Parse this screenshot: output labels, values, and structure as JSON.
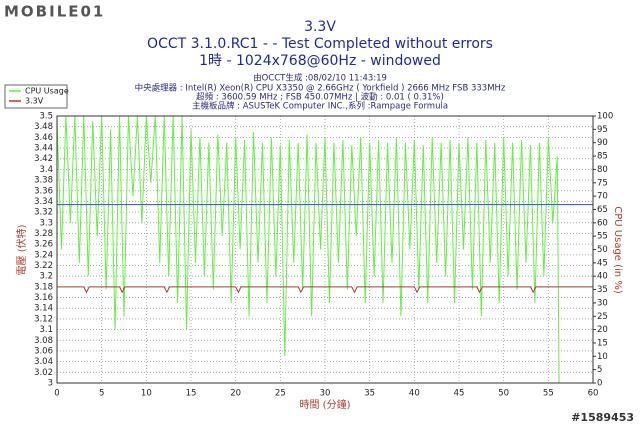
{
  "chart_data": {
    "type": "line",
    "watermark": "MOBILE01",
    "id_label": "#1589453",
    "title": "3.3V",
    "subtitle": "OCCT 3.1.0.RC1 -  - Test Completed without errors",
    "subtitle2": "1時 - 1024x768@60Hz - windowed",
    "info": [
      "由OCCT生成 :08/02/10 11:43:19",
      "中央處理器 : Intel(R) Xeon(R) CPU X3350 @ 2.66GHz ( Yorkfield ) 2666 MHz FSB 333MHz",
      "超頻 : 3600.59 MHz ; FSB 450.07MHz | 波動 : 0.01 ( 0.31%)",
      "主機板品牌 : ASUSTeK Computer INC.,系列 :Rampage Formula"
    ],
    "xlabel": "時間 (分鐘)",
    "ylabel": "電壓 (伏特)",
    "y2label": "CPU Usage (in %)",
    "xlim": [
      0,
      60
    ],
    "xticks": [
      0,
      5,
      10,
      15,
      20,
      25,
      30,
      35,
      40,
      45,
      50,
      55,
      60
    ],
    "ylim": [
      3,
      3.5
    ],
    "yticks": [
      3,
      3.02,
      3.04,
      3.06,
      3.08,
      3.1,
      3.12,
      3.14,
      3.16,
      3.18,
      3.2,
      3.22,
      3.24,
      3.26,
      3.28,
      3.3,
      3.32,
      3.34,
      3.36,
      3.38,
      3.4,
      3.42,
      3.44,
      3.46,
      3.48,
      3.5
    ],
    "y2lim": [
      0,
      100
    ],
    "y2ticks": [
      0,
      5,
      10,
      15,
      20,
      25,
      30,
      35,
      40,
      45,
      50,
      55,
      60,
      65,
      70,
      75,
      80,
      85,
      90,
      95,
      100
    ],
    "grid": true,
    "legend": "top-left",
    "hline": {
      "value": 3.334,
      "color": "#2a4fc4"
    },
    "series": [
      {
        "name": "CPU Usage",
        "color": "#66ee44",
        "axis": "y2",
        "x": [
          0,
          0.5,
          1,
          1.5,
          2,
          2.5,
          3,
          3.5,
          4,
          4.5,
          5,
          5.5,
          6,
          6.5,
          7,
          7.5,
          8,
          8.5,
          9,
          9.5,
          10,
          10.5,
          11,
          11.5,
          12,
          12.5,
          13,
          13.5,
          14,
          14.5,
          15,
          15.5,
          16,
          16.5,
          17,
          17.5,
          18,
          18.5,
          19,
          19.5,
          20,
          20.5,
          21,
          21.5,
          22,
          22.5,
          23,
          23.5,
          24,
          24.5,
          25,
          25.5,
          26,
          26.5,
          27,
          27.5,
          28,
          28.5,
          29,
          29.5,
          30,
          30.5,
          31,
          31.5,
          32,
          32.5,
          33,
          33.5,
          34,
          34.5,
          35,
          35.5,
          36,
          36.5,
          37,
          37.5,
          38,
          38.5,
          39,
          39.5,
          40,
          40.5,
          41,
          41.5,
          42,
          42.5,
          43,
          43.5,
          44,
          44.5,
          45,
          45.5,
          46,
          46.5,
          47,
          47.5,
          48,
          48.5,
          49,
          49.5,
          50,
          50.5,
          51,
          51.5,
          52,
          52.5,
          53,
          53.5,
          54,
          54.5,
          55,
          55.5,
          56,
          56.2
        ],
        "values": [
          98,
          50,
          100,
          60,
          100,
          45,
          100,
          40,
          98,
          55,
          100,
          35,
          95,
          20,
          100,
          25,
          100,
          70,
          100,
          60,
          100,
          75,
          100,
          45,
          100,
          40,
          100,
          30,
          100,
          20,
          95,
          45,
          92,
          40,
          90,
          35,
          93,
          55,
          90,
          30,
          92,
          50,
          91,
          25,
          94,
          45,
          90,
          30,
          92,
          40,
          89,
          10,
          91,
          45,
          90,
          35,
          93,
          25,
          90,
          50,
          92,
          30,
          90,
          45,
          91,
          35,
          89,
          55,
          92,
          30,
          90,
          40,
          91,
          30,
          90,
          45,
          92,
          25,
          90,
          50,
          91,
          35,
          89,
          30,
          92,
          45,
          90,
          40,
          91,
          30,
          90,
          50,
          92,
          35,
          90,
          25,
          91,
          45,
          90,
          30,
          92,
          40,
          90,
          35,
          91,
          45,
          89,
          30,
          90,
          40,
          92,
          60,
          85,
          0
        ]
      },
      {
        "name": "3.3V",
        "color": "#b03a2e",
        "x": [
          0,
          3,
          3.3,
          3.6,
          7,
          7.3,
          7.6,
          12,
          12.3,
          12.6,
          20,
          20.3,
          20.6,
          27,
          27.3,
          27.6,
          33,
          33.3,
          33.6,
          40,
          40.3,
          40.6,
          47,
          47.3,
          47.6,
          53,
          53.3,
          53.6,
          60
        ],
        "values": [
          3.18,
          3.18,
          3.17,
          3.18,
          3.18,
          3.17,
          3.18,
          3.18,
          3.17,
          3.18,
          3.18,
          3.17,
          3.18,
          3.18,
          3.17,
          3.18,
          3.18,
          3.17,
          3.18,
          3.18,
          3.17,
          3.18,
          3.18,
          3.17,
          3.18,
          3.18,
          3.17,
          3.18,
          3.18
        ]
      }
    ]
  }
}
